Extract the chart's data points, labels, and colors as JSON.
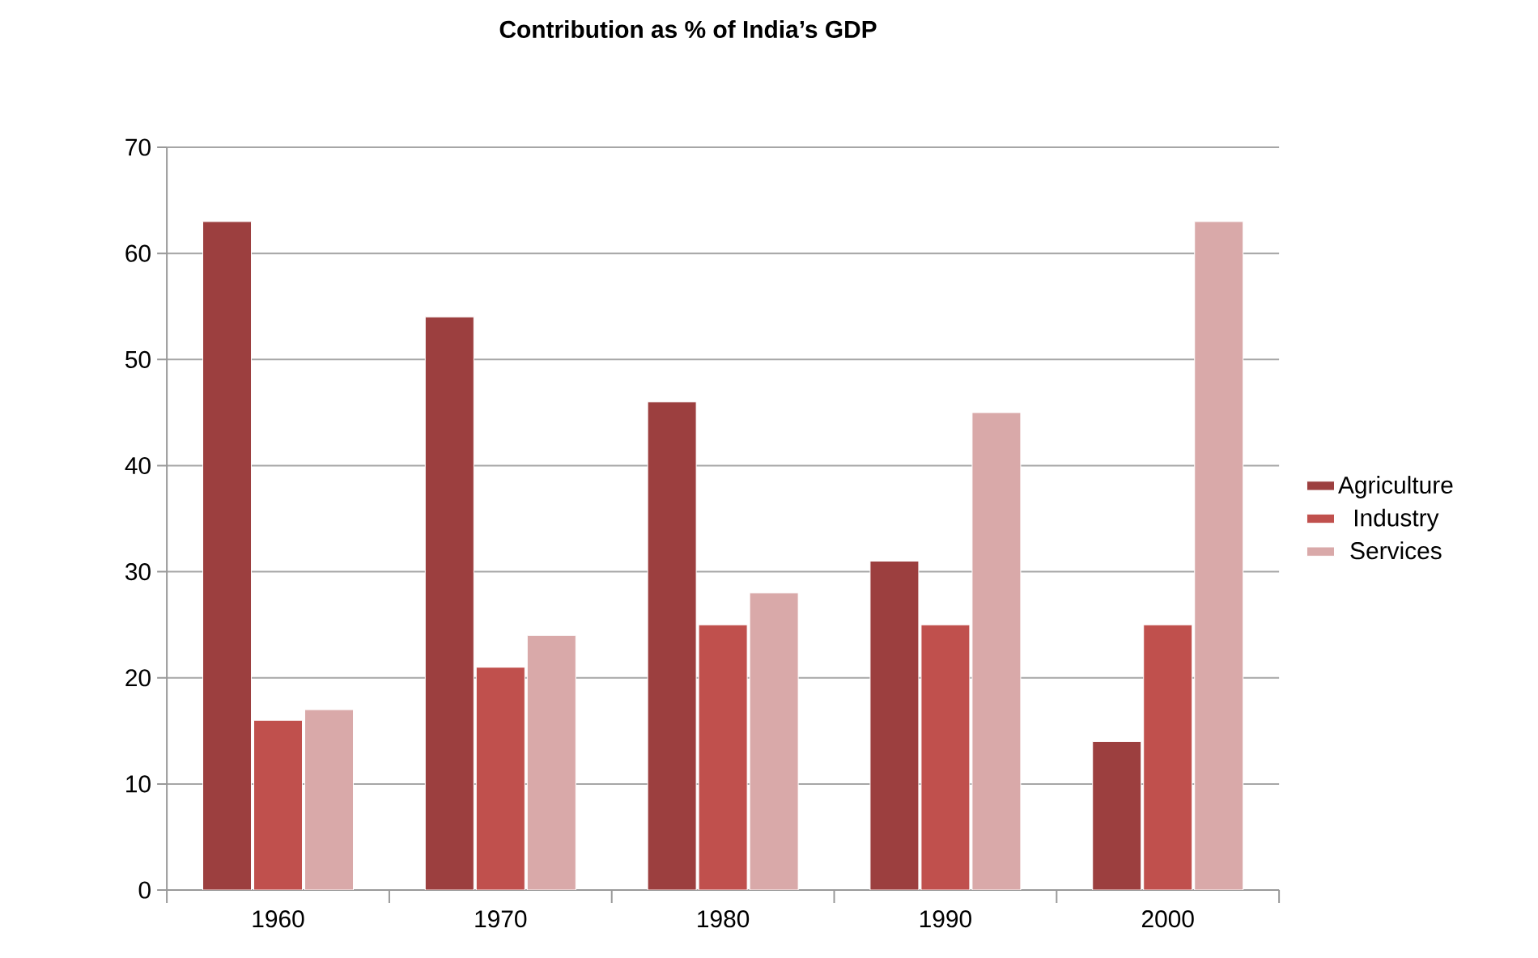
{
  "chart_data": {
    "type": "bar",
    "title": "Contribution as % of India’s GDP",
    "categories": [
      "1960",
      "1970",
      "1980",
      "1990",
      "2000"
    ],
    "series": [
      {
        "name": "Agriculture",
        "color": "#9c3f3f",
        "values": [
          63,
          54,
          46,
          31,
          14
        ]
      },
      {
        "name": "Industry",
        "color": "#c0504d",
        "values": [
          16,
          21,
          25,
          25,
          25
        ]
      },
      {
        "name": "Services",
        "color": "#d9a9a9",
        "values": [
          17,
          24,
          28,
          45,
          63
        ]
      }
    ],
    "ylim": [
      0,
      70
    ],
    "yticks": [
      0,
      10,
      20,
      30,
      40,
      50,
      60,
      70
    ],
    "grid": "y",
    "legend": "right"
  }
}
